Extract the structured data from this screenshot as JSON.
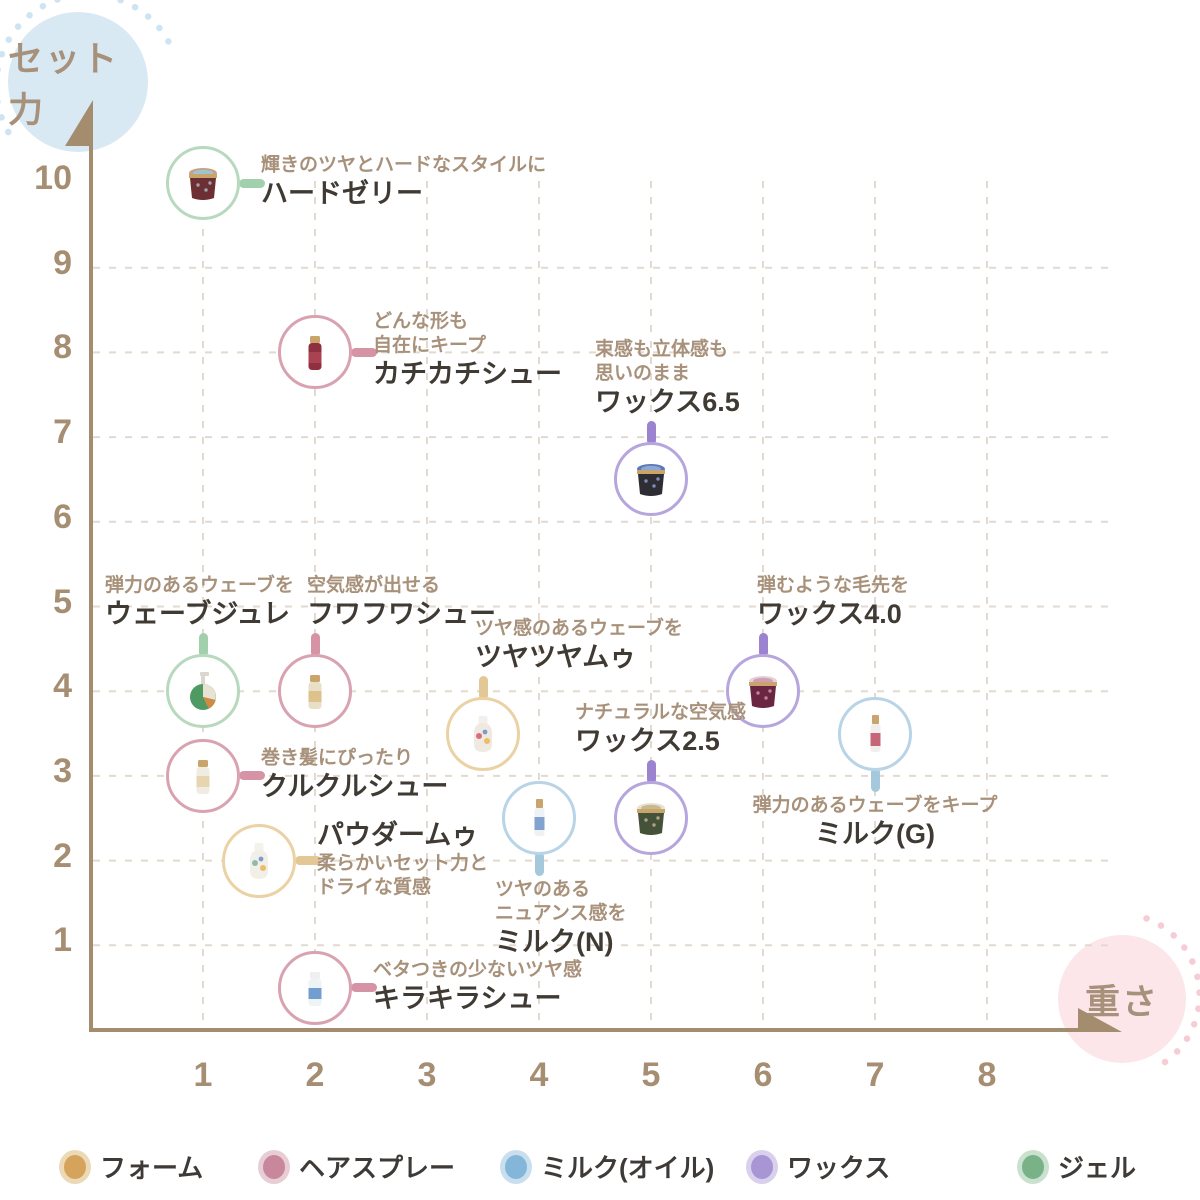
{
  "axis": {
    "y_title": "セット力",
    "x_title": "重さ"
  },
  "chart_data": {
    "type": "scatter",
    "title": "",
    "xlabel": "重さ",
    "ylabel": "セット力",
    "xlim": [
      0,
      8.5
    ],
    "ylim": [
      0,
      10.5
    ],
    "x_ticks": [
      1,
      2,
      3,
      4,
      5,
      6,
      7,
      8
    ],
    "y_ticks": [
      1,
      2,
      3,
      4,
      5,
      6,
      7,
      8,
      9,
      10
    ],
    "grid": "dashed",
    "legend_position": "bottom",
    "categories": [
      {
        "id": "foam",
        "label": "フォーム",
        "color": "#d6a35c",
        "halo": "#ecd9b6",
        "ring": "#ead2a4",
        "connector": "#e3c795"
      },
      {
        "id": "spray",
        "label": "ヘアスプレー",
        "color": "#c9879c",
        "halo": "#e7cdd6",
        "ring": "#d9a2b1",
        "connector": "#d793a6"
      },
      {
        "id": "milk",
        "label": "ミルク(オイル)",
        "color": "#84b6d9",
        "halo": "#c9dfee",
        "ring": "#b9d4e6",
        "connector": "#a5c8dd"
      },
      {
        "id": "wax",
        "label": "ワックス",
        "color": "#a896d4",
        "halo": "#d8d0ed",
        "ring": "#b6a6dd",
        "connector": "#9b83cf"
      },
      {
        "id": "gel",
        "label": "ジェル",
        "color": "#7ab287",
        "halo": "#c9e1ce",
        "ring": "#b8d9bd",
        "connector": "#a3d0ac"
      }
    ],
    "points": [
      {
        "id": "hard-jelly",
        "name": "ハードゼリー",
        "desc": [
          "輝きのツヤとハードなスタイルに"
        ],
        "x": 1,
        "y": 10,
        "category": "gel",
        "label_side": "right",
        "shape": "jar",
        "body": "#6d2f33",
        "lid": "#c8a08a",
        "accent": "#9fc6cf"
      },
      {
        "id": "kachikachi-shu",
        "name": "カチカチシュー",
        "desc": [
          "どんな形も",
          "自在にキープ"
        ],
        "x": 2,
        "y": 8,
        "category": "spray",
        "label_side": "right",
        "shape": "spray",
        "body": "#8e3040",
        "lid": "#c9a56b",
        "accent": "#b24a57"
      },
      {
        "id": "wax-6-5",
        "name": "ワックス6.5",
        "desc": [
          "束感も立体感も",
          "思いのまま"
        ],
        "x": 5,
        "y": 6.5,
        "category": "wax",
        "label_side": "above",
        "label_dx": -56,
        "shape": "jar",
        "body": "#2e2d33",
        "lid": "#5b79b8",
        "accent": "#8fa7d6"
      },
      {
        "id": "wave-jule",
        "name": "ウェーブジュレ",
        "desc": [
          "弾力のあるウェーブを"
        ],
        "x": 1,
        "y": 4,
        "category": "gel",
        "label_side": "above",
        "label_dx": -98,
        "shape": "pump",
        "body": "#4f9a62",
        "lid": "#dcd7cc",
        "accent": "#cf8a45"
      },
      {
        "id": "fuwafuwa-shu",
        "name": "フワフワシュー",
        "desc": [
          "空気感が出せる"
        ],
        "x": 2,
        "y": 4,
        "category": "spray",
        "label_side": "above",
        "label_dx": -8,
        "shape": "spray",
        "body": "#e9dfc6",
        "lid": "#c9a56b",
        "accent": "#d9b878"
      },
      {
        "id": "tsuyatsuya-mu",
        "name": "ツヤツヤムゥ",
        "desc": [
          "ツヤ感のあるウェーブを"
        ],
        "x": 3.5,
        "y": 3.5,
        "category": "foam",
        "label_side": "above",
        "label_dx": -8,
        "shape": "bottle",
        "body": "#efe9e2",
        "lid": "#f1f0ee",
        "accent": "#d8566a"
      },
      {
        "id": "wax-4-0",
        "name": "ワックス4.0",
        "desc": [
          "弾むような毛先を"
        ],
        "x": 6,
        "y": 4,
        "category": "wax",
        "label_side": "above",
        "label_dx": -6,
        "shape": "jar",
        "body": "#6b2742",
        "lid": "#e3d3d8",
        "accent": "#cf9fb2"
      },
      {
        "id": "kurukuru-shu",
        "name": "クルクルシュー",
        "desc": [
          "巻き髪にぴったり"
        ],
        "x": 1,
        "y": 3,
        "category": "spray",
        "label_side": "right",
        "shape": "spray",
        "body": "#f1ece2",
        "lid": "#c9a56b",
        "accent": "#e3cda0"
      },
      {
        "id": "wax-2-5",
        "name": "ワックス2.5",
        "desc": [
          "ナチュラルな空気感"
        ],
        "x": 5,
        "y": 2.5,
        "category": "wax",
        "label_side": "above",
        "label_dx": -76,
        "shape": "jar",
        "body": "#45523a",
        "lid": "#e9e2d4",
        "accent": "#c8b98e"
      },
      {
        "id": "milk-n",
        "name": "ミルク(N)",
        "desc": [
          "ツヤのある",
          "ニュアンス感を"
        ],
        "x": 4,
        "y": 2.5,
        "category": "milk",
        "label_side": "below",
        "label_dx": -44,
        "shape": "slim",
        "body": "#eef2f4",
        "lid": "#c9a56b",
        "accent": "#5d88c2"
      },
      {
        "id": "milk-g",
        "name": "ミルク(G)",
        "desc": [
          "弾力のあるウェーブをキープ"
        ],
        "x": 7,
        "y": 3.5,
        "category": "milk",
        "label_side": "below",
        "label_align": "center",
        "shape": "slim",
        "body": "#f3eeee",
        "lid": "#c9a56b",
        "accent": "#b53a52"
      },
      {
        "id": "powder-mu",
        "name": "パウダームゥ",
        "desc": [
          "柔らかいセット力と",
          "ドライな質感"
        ],
        "x": 1.5,
        "y": 2,
        "category": "foam",
        "label_side": "right",
        "name_first": true,
        "shape": "bottle",
        "body": "#f2efe9",
        "lid": "#f5f2ec",
        "accent": "#7fb2a0"
      },
      {
        "id": "kirakira-shu",
        "name": "キラキラシュー",
        "desc": [
          "ベタつきの少ないツヤ感"
        ],
        "x": 2,
        "y": 0.5,
        "category": "spray",
        "label_side": "right",
        "shape": "spray",
        "body": "#eef3f6",
        "lid": "#efefef",
        "accent": "#4a7fc1"
      }
    ]
  },
  "style_colors": {
    "axis": "#a48c6e",
    "grid": "#e3dacf",
    "tick_text": "#a58e72",
    "desc_text": "#a8917a",
    "name_text": "#403a34",
    "y_bubble_bg": "#d8e9f4",
    "x_bubble_bg": "#fce6ea",
    "y_dots": "#cfe4f2",
    "x_dots": "#f6ccd5"
  }
}
